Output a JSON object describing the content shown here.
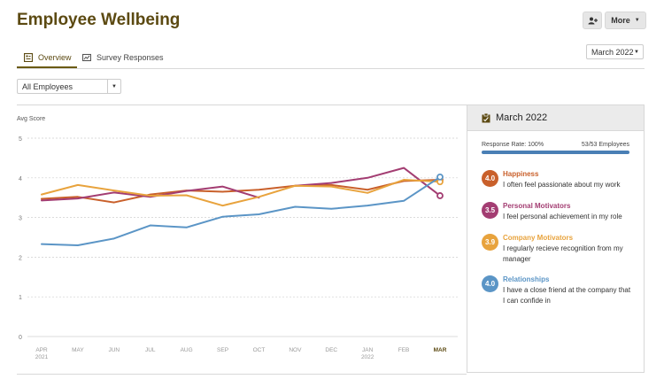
{
  "page": {
    "title": "Employee Wellbeing"
  },
  "toolbar": {
    "more_label": "More"
  },
  "tabs": [
    {
      "label": "Overview"
    },
    {
      "label": "Survey Responses"
    }
  ],
  "month_select": {
    "value": "March 2022"
  },
  "employee_filter": {
    "value": "All Employees"
  },
  "side_panel": {
    "title": "March 2022",
    "response_rate_label": "Response Rate: 100%",
    "response_count": "53/53 Employees",
    "response_rate": 1.0,
    "categories": [
      {
        "score": "4.0",
        "name": "Happiness",
        "description": "I often feel passionate about my work",
        "color": "#c9602b"
      },
      {
        "score": "3.5",
        "name": "Personal Motivators",
        "description": "I feel personal achievement in my role",
        "color": "#a33d72"
      },
      {
        "score": "3.9",
        "name": "Company Motivators",
        "description": "I regularly recieve recognition from my manager",
        "color": "#e8a33d"
      },
      {
        "score": "4.0",
        "name": "Relationships",
        "description": "I have a close friend at the company that I can confide in",
        "color": "#5b95c6"
      }
    ]
  },
  "chart_data": {
    "type": "line",
    "ylabel": "Avg Score",
    "ylim": [
      0,
      5
    ],
    "yticks": [
      "0",
      "1",
      "2",
      "3",
      "4",
      "5"
    ],
    "x": [
      "APR",
      "MAY",
      "JUN",
      "JUL",
      "AUG",
      "SEP",
      "OCT",
      "NOV",
      "DEC",
      "JAN",
      "FEB",
      "MAR"
    ],
    "x_sublabels": [
      "2021",
      "",
      "",
      "",
      "",
      "",
      "",
      "",
      "",
      "2022",
      "",
      ""
    ],
    "highlight_x": "MAR",
    "grid": "horizontal dotted",
    "series": [
      {
        "name": "Happiness",
        "color": "#c9602b",
        "values": [
          3.47,
          3.52,
          3.38,
          3.58,
          3.68,
          3.65,
          3.7,
          3.8,
          3.82,
          3.7,
          3.92,
          3.95
        ]
      },
      {
        "name": "Personal Motivators",
        "color": "#a33d72",
        "values": [
          3.43,
          3.48,
          3.63,
          3.52,
          3.67,
          3.78,
          3.5,
          null,
          null,
          null,
          null,
          null
        ]
      },
      {
        "name": "Personal Motivators",
        "color": "#a33d72",
        "values": [
          null,
          null,
          null,
          null,
          null,
          null,
          null,
          3.8,
          3.87,
          4.0,
          4.25,
          3.55
        ]
      },
      {
        "name": "Company Motivators",
        "color": "#e8a33d",
        "values": [
          3.58,
          3.82,
          3.68,
          3.55,
          3.56,
          3.3,
          3.52,
          3.8,
          3.78,
          3.62,
          3.95,
          3.9
        ]
      },
      {
        "name": "Relationships",
        "color": "#5b95c6",
        "values": [
          2.33,
          2.3,
          2.47,
          2.8,
          2.75,
          3.02,
          3.08,
          3.27,
          3.22,
          3.3,
          3.42,
          4.02
        ]
      }
    ]
  }
}
